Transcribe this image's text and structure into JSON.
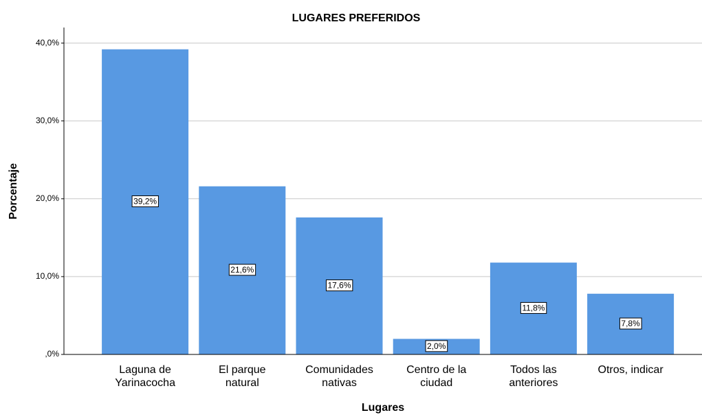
{
  "chart_data": {
    "type": "bar",
    "title": "LUGARES PREFERIDOS",
    "x_label": "Lugares",
    "y_label": "Porcentaje",
    "categories": [
      "Laguna de\nYarinacocha",
      "El parque\nnatural",
      "Comunidades\nnativas",
      "Centro de la\nciudad",
      "Todos las\nanteriores",
      "Otros, indicar"
    ],
    "values": [
      39.2,
      21.6,
      17.6,
      2.0,
      11.8,
      7.8
    ],
    "value_labels": [
      "39,2%",
      "21,6%",
      "17,6%",
      "2,0%",
      "11,8%",
      "7,8%"
    ],
    "color": "#5899e2",
    "ylim": [
      0,
      42
    ],
    "yticks": [
      {
        "value": 0,
        "label": ",0%"
      },
      {
        "value": 10,
        "label": "10,0%"
      },
      {
        "value": 20,
        "label": "20,0%"
      },
      {
        "value": 30,
        "label": "30,0%"
      },
      {
        "value": 40,
        "label": "40,0%"
      }
    ],
    "grid": true
  }
}
